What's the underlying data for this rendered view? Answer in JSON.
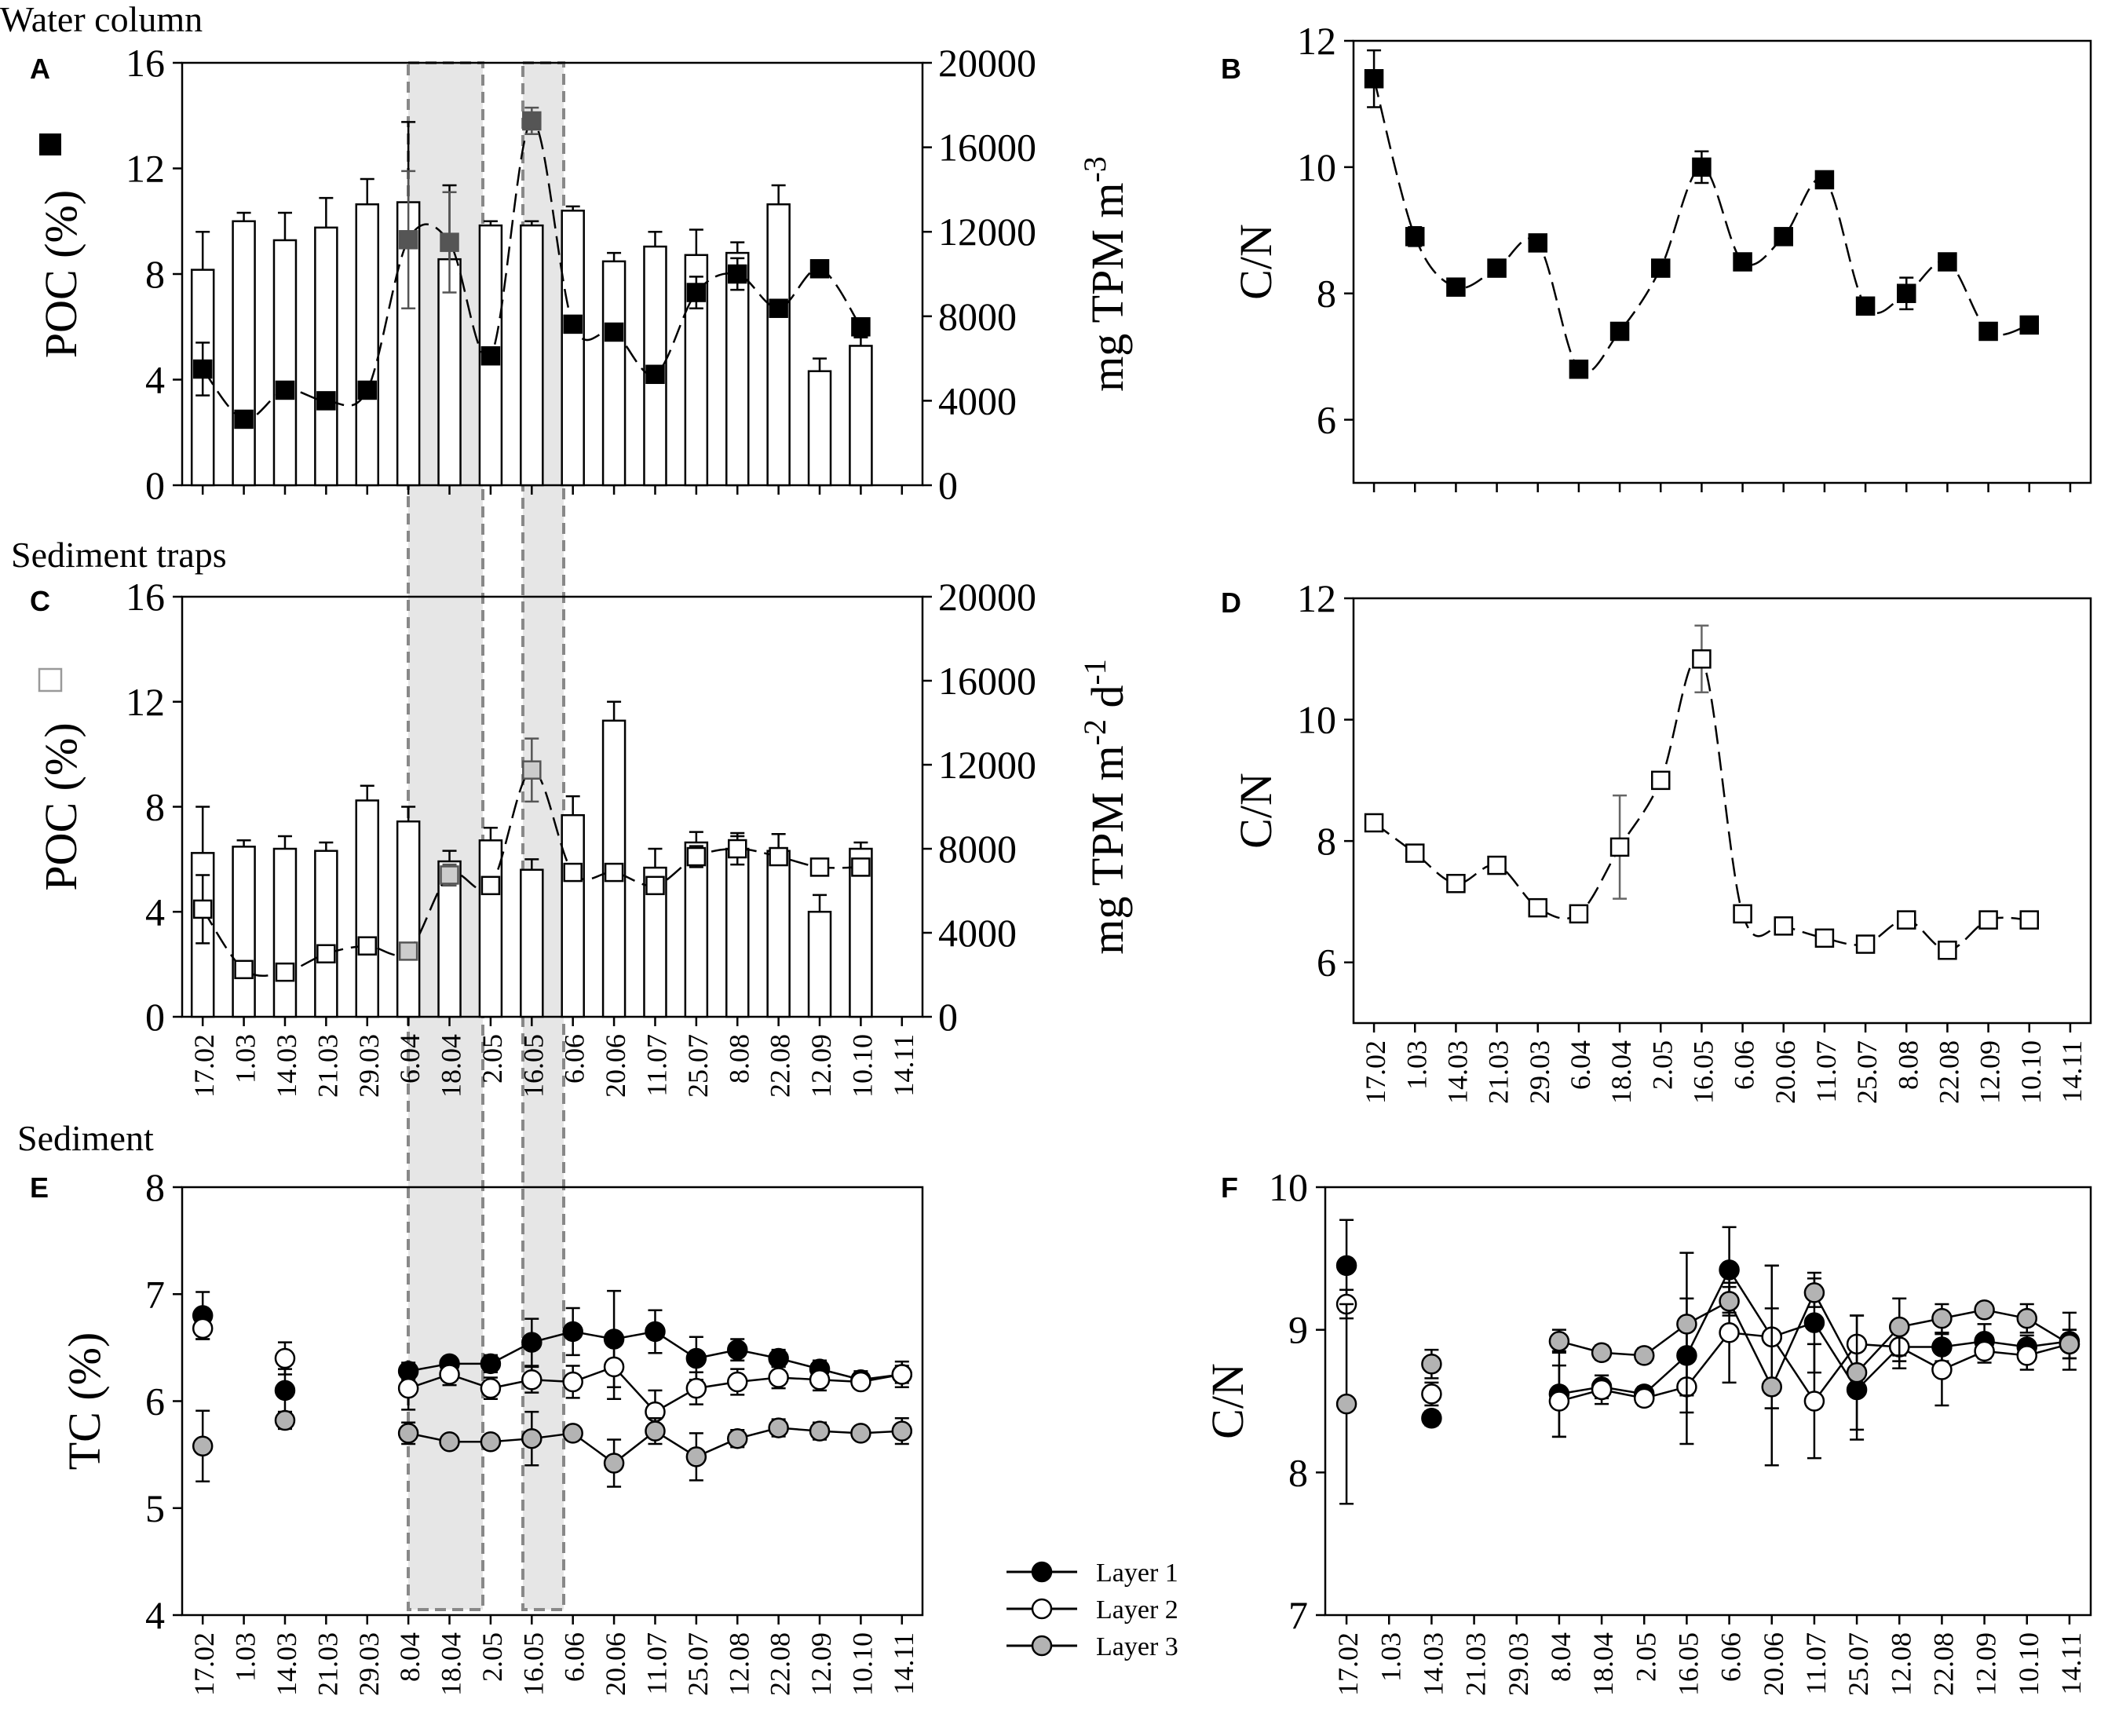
{
  "section_titles": {
    "water": "Water column",
    "traps": "Sediment traps",
    "sediment": "Sediment"
  },
  "dates": [
    "17.02",
    "1.03",
    "14.03",
    "21.03",
    "29.03",
    "6.04",
    "18.04",
    "2.05",
    "16.05",
    "6.06",
    "20.06",
    "11.07",
    "25.07",
    "8.08",
    "22.08",
    "12.09",
    "10.10",
    "14.11"
  ],
  "dates_sed": [
    "17.02",
    "1.03",
    "14.03",
    "21.03",
    "29.03",
    "8.04",
    "18.04",
    "2.05",
    "16.05",
    "6.06",
    "20.06",
    "11.07",
    "25.07",
    "12.08",
    "22.08",
    "12.09",
    "10.10",
    "14.11"
  ],
  "legend": {
    "items": [
      "Layer 1",
      "Layer 2",
      "Layer 3"
    ]
  },
  "colors": {
    "black": "#000000",
    "grey_marker": "#b3b3b3",
    "dark_grey_marker": "#555555",
    "shade": "#e6e6e6",
    "dash": "#888888"
  },
  "chart_data": [
    {
      "panel": "A",
      "type": "bar+line",
      "title": "Water column",
      "ylabel": "POC (%)",
      "ylim": [
        0,
        16
      ],
      "yticks": [
        0,
        4,
        8,
        12,
        16
      ],
      "y2label": "mg TPM m-3",
      "y2label_main": "mg TPM m",
      "y2label_sup": "-3",
      "y2lim": [
        0,
        20000
      ],
      "y2ticks": [
        0,
        4000,
        8000,
        12000,
        16000,
        20000
      ],
      "bars_tpm": [
        10200,
        12500,
        11600,
        12200,
        13300,
        13400,
        10700,
        12300,
        12300,
        13000,
        10600,
        11300,
        10900,
        11000,
        13300,
        5400,
        6600,
        null
      ],
      "bars_tpm_err": [
        1800,
        400,
        1300,
        1400,
        1200,
        3800,
        3500,
        200,
        200,
        200,
        400,
        700,
        1200,
        500,
        900,
        600,
        400,
        null
      ],
      "poc": [
        4.4,
        2.5,
        3.6,
        3.2,
        3.6,
        9.3,
        9.2,
        4.9,
        13.8,
        6.1,
        5.8,
        4.2,
        7.3,
        8.0,
        6.7,
        8.2,
        6.0,
        null
      ],
      "poc_err": [
        1.0,
        0.1,
        0.1,
        0.1,
        0.1,
        2.6,
        1.9,
        0.1,
        0.5,
        0.1,
        0.1,
        0.1,
        0.6,
        0.6,
        0.1,
        0.2,
        0.1,
        null
      ]
    },
    {
      "panel": "B",
      "type": "line",
      "ylabel": "C/N",
      "ylim": [
        5,
        12
      ],
      "yticks": [
        6,
        8,
        10,
        12
      ],
      "values": [
        11.4,
        8.9,
        8.1,
        8.4,
        8.8,
        6.8,
        7.4,
        8.4,
        10.0,
        8.5,
        8.9,
        9.8,
        7.8,
        8.0,
        8.5,
        7.4,
        7.5,
        null
      ],
      "errors": [
        0.45,
        0.15,
        0.1,
        0.1,
        0.1,
        0.1,
        0.1,
        0.1,
        0.25,
        0.1,
        0.1,
        0.1,
        0.1,
        0.25,
        0.1,
        0.1,
        0.1,
        null
      ]
    },
    {
      "panel": "C",
      "type": "bar+line",
      "title": "Sediment traps",
      "ylabel": "POC (%)",
      "ylim": [
        0,
        16
      ],
      "yticks": [
        0,
        4,
        8,
        12,
        16
      ],
      "y2label": "mg TPM m-2 d-1",
      "y2label_main": "mg TPM m",
      "y2label_sup1": "-2",
      "y2label_mid": " d",
      "y2label_sup2": "-1",
      "y2lim": [
        0,
        20000
      ],
      "y2ticks": [
        0,
        4000,
        8000,
        12000,
        16000,
        20000
      ],
      "bars_tpm": [
        7800,
        8100,
        8000,
        7900,
        10300,
        9300,
        7400,
        8400,
        7000,
        9600,
        14100,
        7100,
        8300,
        8000,
        7900,
        5000,
        8000,
        null
      ],
      "bars_tpm_err": [
        2200,
        300,
        600,
        400,
        700,
        700,
        500,
        600,
        500,
        900,
        900,
        900,
        500,
        600,
        800,
        800,
        300,
        null
      ],
      "poc": [
        4.1,
        1.8,
        1.7,
        2.4,
        2.7,
        2.5,
        5.4,
        5.0,
        9.4,
        5.5,
        5.5,
        5.0,
        6.1,
        6.4,
        6.1,
        5.7,
        5.7,
        null
      ],
      "poc_err": [
        1.3,
        0.1,
        0.1,
        0.1,
        0.1,
        0.1,
        0.4,
        0.1,
        1.2,
        0.1,
        0.1,
        0.1,
        0.4,
        0.6,
        0.1,
        0.1,
        0.2,
        null
      ]
    },
    {
      "panel": "D",
      "type": "line",
      "ylabel": "C/N",
      "ylim": [
        5,
        12
      ],
      "yticks": [
        6,
        8,
        10,
        12
      ],
      "values": [
        8.3,
        7.8,
        7.3,
        7.6,
        6.9,
        6.8,
        7.9,
        9.0,
        11.0,
        6.8,
        6.6,
        6.4,
        6.3,
        6.7,
        6.2,
        6.7,
        6.7,
        null
      ],
      "errors": [
        0.1,
        0.1,
        0.1,
        0.1,
        0.1,
        0.1,
        0.85,
        0.1,
        0.55,
        0.1,
        0.1,
        0.1,
        0.1,
        0.1,
        0.1,
        0.1,
        0.1,
        null
      ]
    },
    {
      "panel": "E",
      "type": "scatter-line",
      "title": "Sediment",
      "ylabel": "TC (%)",
      "ylim": [
        4,
        8
      ],
      "yticks": [
        4,
        5,
        6,
        7,
        8
      ],
      "series": [
        {
          "name": "Layer 1",
          "values": [
            6.8,
            null,
            6.1,
            null,
            null,
            6.28,
            6.35,
            6.35,
            6.55,
            6.65,
            6.58,
            6.65,
            6.4,
            6.48,
            6.4,
            6.3,
            6.2,
            6.25
          ],
          "errors": [
            0.22,
            null,
            0.2,
            null,
            null,
            0.08,
            0.05,
            0.08,
            0.22,
            0.22,
            0.45,
            0.2,
            0.2,
            0.1,
            0.08,
            0.08,
            0.08,
            0.12
          ]
        },
        {
          "name": "Layer 2",
          "values": [
            6.68,
            null,
            6.4,
            null,
            null,
            6.12,
            6.25,
            6.12,
            6.2,
            6.18,
            6.32,
            5.9,
            6.12,
            6.18,
            6.22,
            6.2,
            6.18,
            6.25
          ],
          "errors": [
            0.1,
            null,
            0.15,
            null,
            null,
            0.2,
            0.1,
            0.1,
            0.12,
            0.15,
            0.3,
            0.2,
            0.15,
            0.12,
            0.1,
            0.1,
            0.05,
            0.08
          ]
        },
        {
          "name": "Layer 3",
          "values": [
            5.58,
            null,
            5.82,
            null,
            null,
            5.7,
            5.62,
            5.62,
            5.65,
            5.7,
            5.42,
            5.72,
            5.48,
            5.65,
            5.75,
            5.72,
            5.7,
            5.72
          ],
          "errors": [
            0.33,
            null,
            0.08,
            null,
            null,
            0.1,
            0.05,
            0.05,
            0.25,
            0.05,
            0.22,
            0.12,
            0.22,
            0.08,
            0.08,
            0.08,
            0.05,
            0.12
          ]
        }
      ]
    },
    {
      "panel": "F",
      "type": "scatter-line",
      "ylabel": "C/N",
      "ylim": [
        7,
        10
      ],
      "yticks": [
        7,
        8,
        9,
        10
      ],
      "series": [
        {
          "name": "Layer 1",
          "values": [
            9.45,
            null,
            8.38,
            null,
            null,
            8.55,
            8.6,
            8.55,
            8.82,
            9.42,
            8.95,
            9.05,
            8.58,
            8.88,
            8.88,
            8.92,
            8.88,
            8.92
          ],
          "errors": [
            0.32,
            null,
            0.05,
            null,
            null,
            0.3,
            0.08,
            0.05,
            0.4,
            0.3,
            0.5,
            0.35,
            0.35,
            0.1,
            0.1,
            0.12,
            0.08,
            0.2
          ]
        },
        {
          "name": "Layer 2",
          "values": [
            9.18,
            null,
            8.55,
            null,
            null,
            8.5,
            8.58,
            8.52,
            8.6,
            8.98,
            8.95,
            8.5,
            8.9,
            8.88,
            8.72,
            8.85,
            8.82,
            8.9
          ],
          "errors": [
            0.1,
            null,
            0.08,
            null,
            null,
            0.25,
            0.1,
            0.05,
            0.4,
            0.35,
            0.5,
            0.4,
            0.2,
            0.15,
            0.25,
            0.08,
            0.1,
            0.1
          ]
        },
        {
          "name": "Layer 3",
          "values": [
            8.48,
            null,
            8.76,
            null,
            null,
            8.92,
            8.84,
            8.82,
            9.04,
            9.2,
            8.6,
            9.26,
            8.7,
            9.02,
            9.08,
            9.14,
            9.08,
            8.9
          ],
          "errors": [
            0.7,
            null,
            0.1,
            null,
            null,
            0.08,
            0.05,
            0.05,
            0.5,
            0.1,
            0.55,
            0.1,
            0.4,
            0.2,
            0.1,
            0.05,
            0.1,
            0.1
          ]
        }
      ]
    }
  ]
}
